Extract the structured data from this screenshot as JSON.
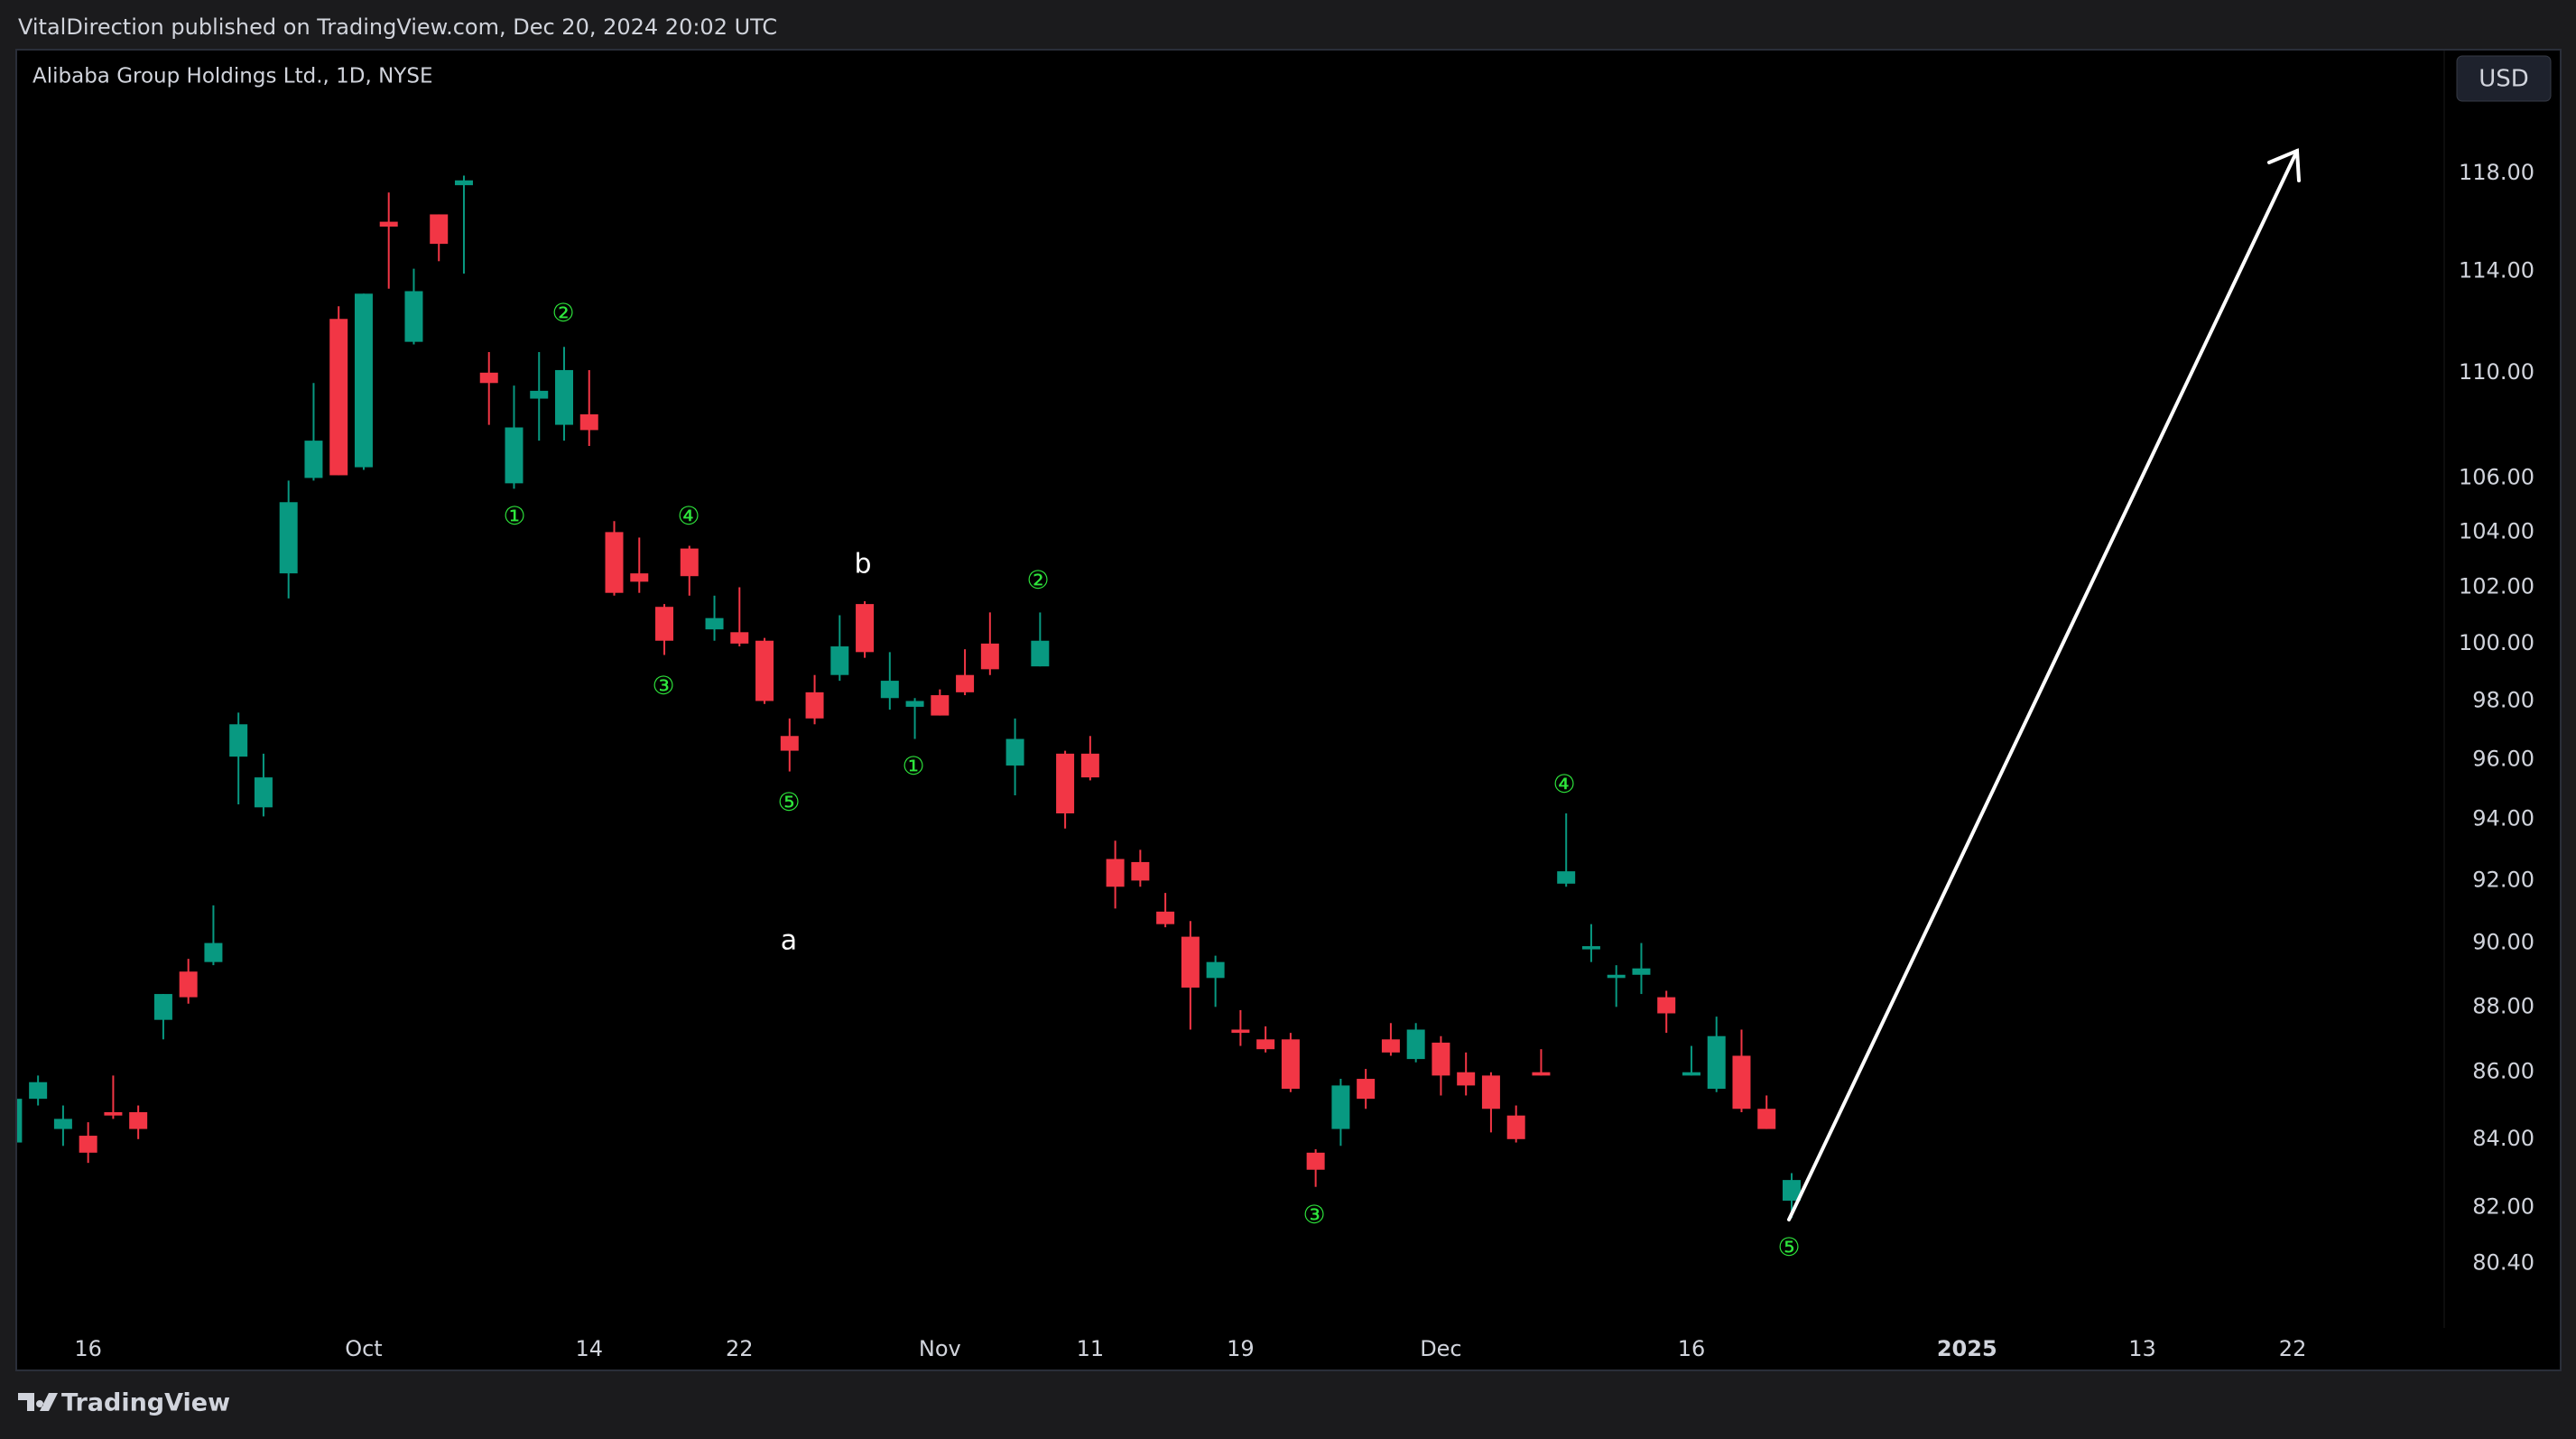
{
  "header": "VitalDirection published on TradingView.com, Dec 20, 2024 20:02 UTC",
  "currency_button": "USD",
  "footer": "TradingView",
  "chart_data": {
    "type": "candlestick",
    "title": "Alibaba Group Holdings Ltd., 1D, NYSE",
    "up_color": "#089981",
    "down_color": "#f23645",
    "log_scale": true,
    "ylim": [
      78.6,
      123.2
    ],
    "yticks": [
      {
        "value": 118,
        "label": "118.00"
      },
      {
        "value": 114,
        "label": "114.00"
      },
      {
        "value": 110,
        "label": "110.00"
      },
      {
        "value": 106,
        "label": "106.00"
      },
      {
        "value": 104,
        "label": "104.00"
      },
      {
        "value": 102,
        "label": "102.00"
      },
      {
        "value": 100,
        "label": "100.00"
      },
      {
        "value": 98,
        "label": "98.00"
      },
      {
        "value": 96,
        "label": "96.00"
      },
      {
        "value": 94,
        "label": "94.00"
      },
      {
        "value": 92,
        "label": "92.00"
      },
      {
        "value": 90,
        "label": "90.00"
      },
      {
        "value": 88,
        "label": "88.00"
      },
      {
        "value": 86,
        "label": "86.00"
      },
      {
        "value": 84,
        "label": "84.00"
      },
      {
        "value": 82,
        "label": "82.00"
      },
      {
        "value": 80.4,
        "label": "80.40"
      }
    ],
    "xlim": [
      0.13,
      97.05
    ],
    "xticks": [
      {
        "value": 3,
        "label": "16"
      },
      {
        "value": 14,
        "label": "Oct"
      },
      {
        "value": 23,
        "label": "14"
      },
      {
        "value": 29,
        "label": "22"
      },
      {
        "value": 37,
        "label": "Nov"
      },
      {
        "value": 43,
        "label": "11"
      },
      {
        "value": 49,
        "label": "19"
      },
      {
        "value": 57,
        "label": "Dec"
      },
      {
        "value": 67,
        "label": "16"
      },
      {
        "value": 78,
        "label": "2025"
      },
      {
        "value": 85,
        "label": "13"
      },
      {
        "value": 91,
        "label": "22"
      }
    ],
    "open": [
      83.9,
      85.2,
      84.3,
      84.1,
      84.8,
      84.8,
      87.6,
      89.1,
      89.4,
      96.1,
      94.4,
      102.5,
      106.0,
      112.1,
      106.4,
      116.0,
      111.2,
      116.3,
      117.5,
      110.0,
      105.8,
      109.0,
      108.0,
      108.4,
      104.0,
      102.5,
      101.3,
      103.4,
      100.5,
      100.4,
      100.1,
      96.8,
      98.3,
      98.9,
      101.4,
      98.1,
      97.8,
      98.2,
      98.9,
      100.0,
      95.8,
      99.2,
      96.2,
      96.2,
      92.7,
      92.6,
      91.0,
      90.2,
      88.9,
      87.3,
      87.0,
      87.0,
      83.6,
      84.3,
      85.8,
      87.0,
      86.4,
      86.9,
      86.0,
      85.9,
      84.7,
      86.0,
      91.9,
      89.8,
      88.9,
      89.0,
      88.3,
      85.9,
      85.5,
      86.5,
      84.9,
      82.2
    ],
    "high": [
      85.3,
      85.9,
      85.0,
      84.5,
      85.9,
      85.0,
      88.4,
      89.5,
      91.2,
      97.6,
      96.2,
      105.9,
      109.6,
      112.6,
      113.1,
      117.2,
      114.1,
      116.3,
      117.9,
      110.8,
      109.5,
      110.8,
      111.0,
      110.1,
      104.4,
      103.8,
      101.4,
      103.5,
      101.7,
      102.0,
      100.2,
      97.4,
      98.9,
      101.0,
      101.5,
      99.7,
      98.1,
      98.4,
      99.8,
      101.1,
      97.4,
      101.1,
      96.3,
      96.8,
      93.3,
      93.0,
      91.6,
      90.7,
      89.6,
      87.9,
      87.4,
      87.2,
      83.7,
      85.8,
      86.1,
      87.5,
      87.5,
      87.1,
      86.6,
      86.0,
      85.0,
      86.7,
      94.2,
      90.6,
      89.3,
      90.0,
      88.5,
      86.8,
      87.7,
      87.3,
      85.3,
      83.0
    ],
    "low": [
      83.8,
      85.0,
      83.8,
      83.3,
      84.6,
      84.0,
      87.0,
      88.1,
      89.3,
      94.5,
      94.1,
      101.6,
      105.9,
      106.1,
      106.3,
      113.3,
      111.1,
      114.4,
      113.9,
      108.0,
      105.6,
      107.4,
      107.4,
      107.2,
      101.7,
      101.8,
      99.6,
      101.7,
      100.1,
      99.9,
      97.9,
      95.6,
      97.2,
      98.7,
      99.5,
      97.7,
      96.7,
      97.5,
      98.2,
      98.9,
      94.8,
      99.2,
      93.7,
      95.3,
      91.1,
      91.8,
      90.5,
      87.3,
      88.0,
      86.8,
      86.6,
      85.4,
      82.6,
      83.8,
      84.9,
      86.5,
      86.3,
      85.3,
      85.3,
      84.2,
      83.9,
      85.9,
      91.8,
      89.4,
      88.0,
      88.4,
      87.2,
      85.9,
      85.4,
      84.8,
      84.3,
      81.7
    ],
    "close": [
      85.2,
      85.7,
      84.6,
      83.6,
      84.7,
      84.3,
      88.4,
      88.3,
      90.0,
      97.2,
      95.4,
      105.1,
      107.4,
      106.1,
      113.1,
      115.8,
      113.2,
      115.1,
      117.7,
      109.6,
      107.9,
      109.3,
      110.1,
      107.8,
      101.8,
      102.2,
      100.1,
      102.4,
      100.9,
      100.0,
      98.0,
      96.3,
      97.4,
      99.9,
      99.7,
      98.7,
      98.0,
      97.5,
      98.3,
      99.1,
      96.7,
      100.1,
      94.2,
      95.4,
      91.8,
      92.0,
      90.6,
      88.6,
      89.4,
      87.2,
      86.7,
      85.5,
      83.1,
      85.6,
      85.2,
      86.6,
      87.3,
      85.9,
      85.6,
      84.9,
      84.0,
      85.9,
      92.3,
      89.9,
      89.0,
      89.2,
      87.8,
      86.0,
      87.1,
      84.9,
      84.3,
      82.8
    ],
    "annotations": [
      "①",
      "②",
      "③",
      "④",
      "⑤",
      "a",
      "b",
      "①",
      "②",
      "③",
      "④",
      "⑤"
    ]
  }
}
